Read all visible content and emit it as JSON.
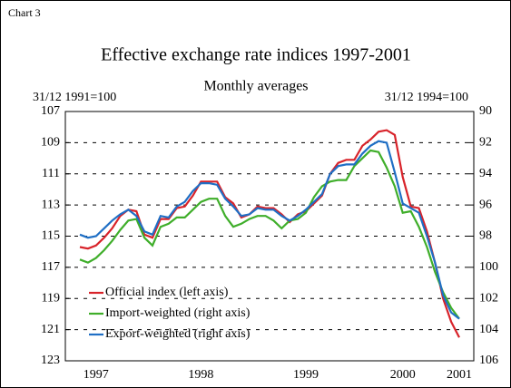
{
  "chart_data": {
    "type": "line",
    "label": "Chart 3",
    "title": "Effective exchange rate indices 1997-2001",
    "subtitle": "Monthly averages",
    "y_label": "31/12 1991=100",
    "y2_label": "31/12 1994=100",
    "categories": [
      null,
      null,
      "1997",
      null,
      null,
      null,
      null,
      null,
      null,
      null,
      null,
      null,
      null,
      null,
      null,
      "1998",
      null,
      null,
      null,
      null,
      null,
      null,
      null,
      null,
      null,
      null,
      null,
      null,
      "1999",
      null,
      null,
      null,
      null,
      null,
      null,
      null,
      null,
      null,
      null,
      null,
      "2000",
      null,
      null,
      null,
      null,
      null,
      null,
      "2001"
    ],
    "series": [
      {
        "name": "Official index (left axis)",
        "color": "#d8232a",
        "values": [
          115.7,
          115.8,
          115.6,
          115.1,
          114.5,
          113.7,
          113.3,
          113.4,
          114.9,
          115.1,
          113.9,
          113.9,
          113.2,
          113.1,
          112.4,
          111.5,
          111.5,
          111.5,
          112.5,
          112.9,
          113.8,
          113.6,
          113.1,
          113.2,
          113.2,
          113.6,
          114.1,
          113.6,
          113.4,
          112.9,
          112.4,
          111.0,
          110.3,
          110.1,
          110.1,
          109.2,
          108.8,
          108.3,
          108.2,
          108.5,
          111.2,
          113.1,
          113.2,
          114.7,
          116.7,
          119.0,
          120.5,
          121.5
        ]
      },
      {
        "name": "Import-weighted (right axis)",
        "color": "#3fae2a",
        "axis": "y2",
        "values": [
          99.5,
          99.7,
          99.4,
          98.9,
          98.3,
          97.6,
          97.0,
          96.9,
          98.1,
          98.6,
          97.4,
          97.2,
          96.8,
          96.8,
          96.3,
          95.8,
          95.6,
          95.6,
          96.7,
          97.4,
          97.2,
          96.9,
          96.7,
          96.7,
          97.0,
          97.5,
          97.0,
          96.9,
          96.5,
          95.5,
          94.8,
          94.5,
          94.4,
          94.4,
          93.5,
          93.0,
          92.5,
          92.6,
          93.6,
          94.8,
          96.5,
          96.4,
          97.4,
          98.7,
          100.3,
          101.6,
          102.6,
          103.3
        ]
      },
      {
        "name": "Export-weighted (right axis)",
        "color": "#1f6fc5",
        "axis": "y2",
        "values": [
          97.9,
          98.1,
          98.0,
          97.5,
          97.0,
          96.6,
          96.3,
          96.7,
          97.7,
          97.9,
          96.7,
          96.8,
          96.1,
          95.8,
          95.1,
          94.6,
          94.6,
          94.7,
          95.6,
          96.1,
          96.7,
          96.6,
          96.2,
          96.3,
          96.3,
          96.7,
          97.0,
          96.7,
          96.3,
          95.8,
          95.3,
          94.0,
          93.5,
          93.4,
          93.4,
          92.7,
          92.2,
          91.9,
          92.0,
          93.9,
          95.9,
          96.2,
          96.5,
          98.0,
          99.7,
          101.8,
          102.9,
          103.3
        ]
      }
    ],
    "ylim": [
      123,
      107
    ],
    "yticks": [
      107,
      109,
      111,
      113,
      115,
      117,
      119,
      121,
      123
    ],
    "y2lim": [
      106,
      90
    ],
    "y2ticks": [
      90,
      92,
      94,
      96,
      98,
      100,
      102,
      104,
      106
    ],
    "grid": true,
    "legend": "lower left"
  }
}
